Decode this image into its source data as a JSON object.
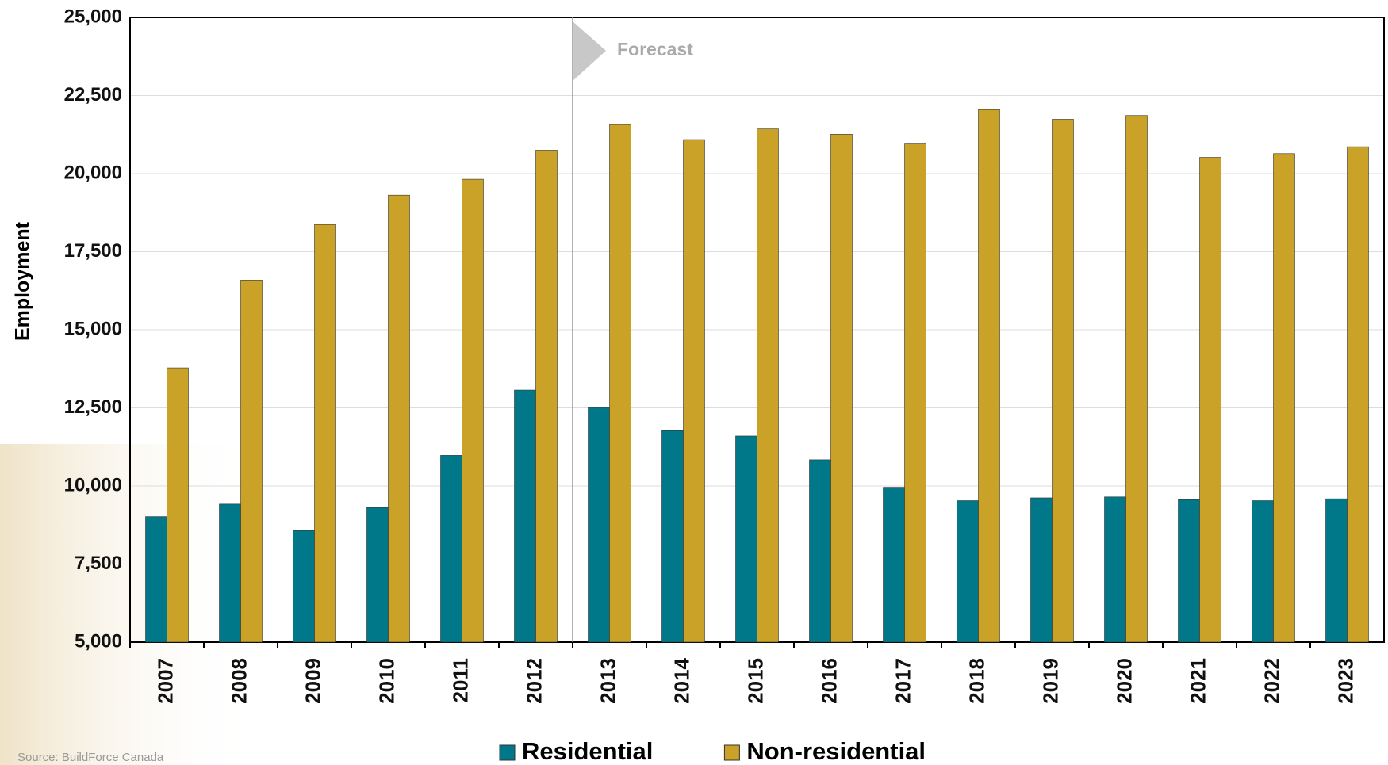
{
  "chart_data": {
    "type": "bar",
    "y_label": "Employment",
    "annotation": "Forecast",
    "source": "Source: BuildForce Canada",
    "categories": [
      "2007",
      "2008",
      "2009",
      "2010",
      "2011",
      "2012",
      "2013",
      "2014",
      "2015",
      "2016",
      "2017",
      "2018",
      "2019",
      "2020",
      "2021",
      "2022",
      "2023"
    ],
    "series": [
      {
        "name": "Residential",
        "color": "#00788a",
        "values": [
          9020,
          9420,
          8570,
          9310,
          10980,
          13070,
          12510,
          11770,
          11600,
          10840,
          9960,
          9530,
          9620,
          9650,
          9560,
          9530,
          9590
        ]
      },
      {
        "name": "Non-residential",
        "color": "#c9a227",
        "values": [
          13780,
          16590,
          18370,
          19310,
          19820,
          20750,
          21570,
          21090,
          21430,
          21260,
          20950,
          22050,
          21740,
          21860,
          20520,
          20640,
          20860
        ]
      }
    ],
    "ylim": [
      5000,
      25000
    ],
    "yticks": [
      {
        "value": 5000,
        "label": "5,000"
      },
      {
        "value": 7500,
        "label": "7,500"
      },
      {
        "value": 10000,
        "label": "10,000"
      },
      {
        "value": 12500,
        "label": "12,500"
      },
      {
        "value": 15000,
        "label": "15,000"
      },
      {
        "value": 17500,
        "label": "17,500"
      },
      {
        "value": 20000,
        "label": "20,000"
      },
      {
        "value": 22500,
        "label": "22,500"
      },
      {
        "value": 25000,
        "label": "25,000"
      }
    ],
    "grid": true
  }
}
